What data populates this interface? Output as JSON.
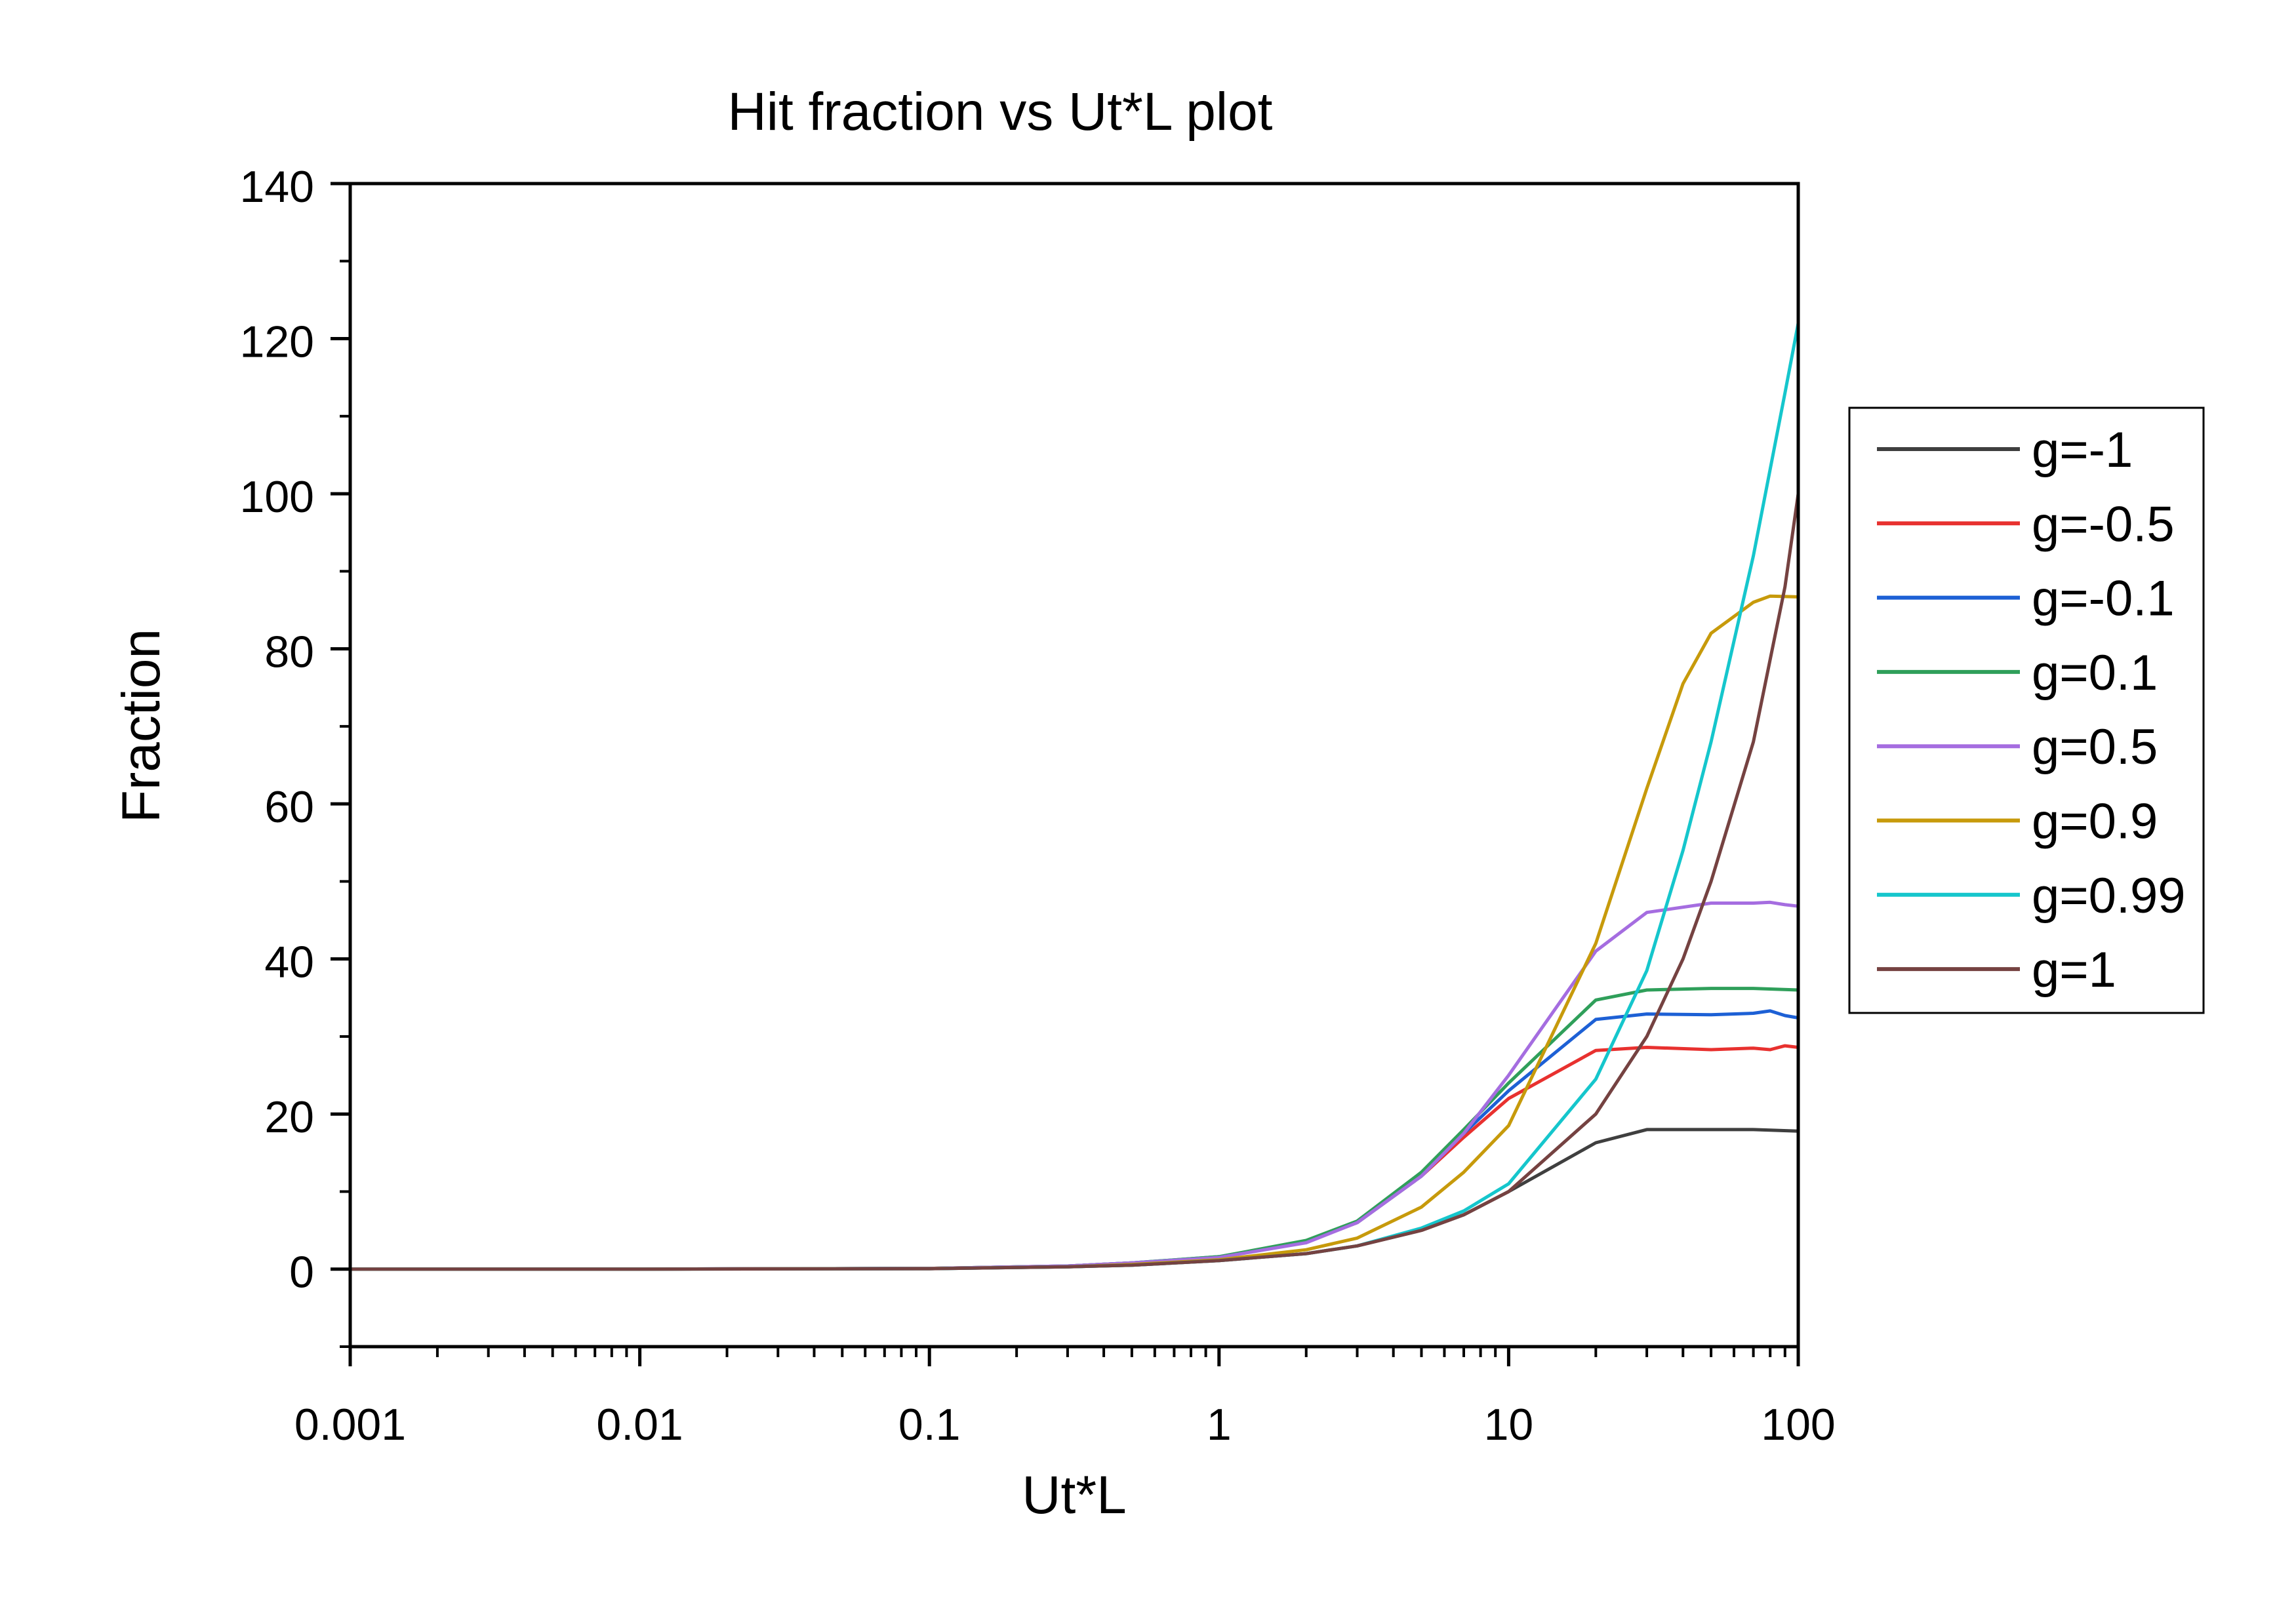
{
  "chart_data": {
    "type": "line",
    "title": "Hit fraction vs Ut*L plot",
    "xlabel": "Ut*L",
    "ylabel": "Fraction",
    "xscale": "log",
    "xlim": [
      0.001,
      100
    ],
    "ylim": [
      -10,
      140
    ],
    "xticks": [
      {
        "value": 0.001,
        "label": "0.001"
      },
      {
        "value": 0.01,
        "label": "0.01"
      },
      {
        "value": 0.1,
        "label": "0.1"
      },
      {
        "value": 1,
        "label": "1"
      },
      {
        "value": 10,
        "label": "10"
      },
      {
        "value": 100,
        "label": "100"
      }
    ],
    "yticks": [
      {
        "value": 0,
        "label": "0"
      },
      {
        "value": 20,
        "label": "20"
      },
      {
        "value": 40,
        "label": "40"
      },
      {
        "value": 60,
        "label": "60"
      },
      {
        "value": 80,
        "label": "80"
      },
      {
        "value": 100,
        "label": "100"
      },
      {
        "value": 120,
        "label": "120"
      },
      {
        "value": 140,
        "label": "140"
      }
    ],
    "grid": false,
    "legend_position": "right",
    "series": [
      {
        "name": "g=-1",
        "color": "#3f3f3f",
        "x": [
          0.001,
          0.01,
          0.1,
          0.3,
          0.5,
          1,
          2,
          3,
          5,
          7,
          10,
          20,
          30,
          50,
          70,
          100
        ],
        "y": [
          0,
          0,
          0.05,
          0.3,
          0.5,
          1.1,
          2,
          3,
          5,
          7,
          10,
          16.3,
          18,
          18,
          18,
          17.8
        ]
      },
      {
        "name": "g=-0.5",
        "color": "#e8312f",
        "x": [
          0.001,
          0.01,
          0.1,
          0.3,
          0.5,
          1,
          2,
          3,
          5,
          7,
          10,
          20,
          30,
          50,
          70,
          80,
          90,
          100
        ],
        "y": [
          0,
          0,
          0.1,
          0.4,
          0.8,
          1.5,
          3.5,
          6,
          12,
          17,
          22,
          28.2,
          28.6,
          28.3,
          28.5,
          28.3,
          28.8,
          28.6
        ]
      },
      {
        "name": "g=-0.1",
        "color": "#1d60d5",
        "x": [
          0.001,
          0.01,
          0.1,
          0.3,
          0.5,
          1,
          2,
          3,
          5,
          7,
          10,
          20,
          30,
          50,
          70,
          80,
          90,
          100
        ],
        "y": [
          0,
          0,
          0.1,
          0.4,
          0.8,
          1.6,
          3.6,
          6,
          12,
          17.5,
          23,
          32.2,
          32.9,
          32.8,
          33,
          33.3,
          32.7,
          32.4
        ]
      },
      {
        "name": "g=0.1",
        "color": "#2f9f5a",
        "x": [
          0.001,
          0.01,
          0.1,
          0.3,
          0.5,
          1,
          2,
          3,
          5,
          7,
          10,
          20,
          30,
          50,
          70,
          100
        ],
        "y": [
          0,
          0,
          0.1,
          0.4,
          0.8,
          1.6,
          3.7,
          6.2,
          12.5,
          18,
          24,
          34.7,
          36,
          36.2,
          36.2,
          36
        ]
      },
      {
        "name": "g=0.5",
        "color": "#a56de0",
        "x": [
          0.001,
          0.01,
          0.1,
          0.3,
          0.5,
          1,
          2,
          3,
          5,
          7,
          10,
          20,
          30,
          50,
          70,
          80,
          90,
          100
        ],
        "y": [
          0,
          0,
          0.1,
          0.4,
          0.8,
          1.5,
          3.4,
          6,
          12,
          17.5,
          25,
          41,
          46,
          47.2,
          47.2,
          47.3,
          47,
          46.8
        ]
      },
      {
        "name": "g=0.9",
        "color": "#c79a0b",
        "x": [
          0.001,
          0.01,
          0.1,
          0.3,
          0.5,
          1,
          2,
          3,
          5,
          7,
          10,
          20,
          30,
          40,
          50,
          70,
          80,
          100
        ],
        "y": [
          0,
          0,
          0.07,
          0.3,
          0.6,
          1.2,
          2.5,
          4,
          8,
          12.5,
          18.5,
          42,
          62,
          75.5,
          82,
          86,
          86.8,
          86.7
        ]
      },
      {
        "name": "g=0.99",
        "color": "#15c6cc",
        "x": [
          0.001,
          0.01,
          0.1,
          0.3,
          0.5,
          1,
          2,
          3,
          5,
          7,
          10,
          20,
          30,
          40,
          50,
          70,
          90,
          100
        ],
        "y": [
          0,
          0,
          0.05,
          0.3,
          0.5,
          1.1,
          2,
          3,
          5.3,
          7.5,
          11,
          24.5,
          38.5,
          54,
          68,
          92,
          113,
          122
        ]
      },
      {
        "name": "g=1",
        "color": "#754241",
        "x": [
          0.001,
          0.01,
          0.1,
          0.3,
          0.5,
          1,
          2,
          3,
          5,
          7,
          10,
          20,
          30,
          40,
          50,
          70,
          90,
          100
        ],
        "y": [
          0,
          0,
          0.05,
          0.3,
          0.5,
          1.1,
          2,
          3,
          5,
          7,
          10,
          20,
          30,
          40,
          50,
          68,
          88,
          100
        ]
      }
    ]
  }
}
